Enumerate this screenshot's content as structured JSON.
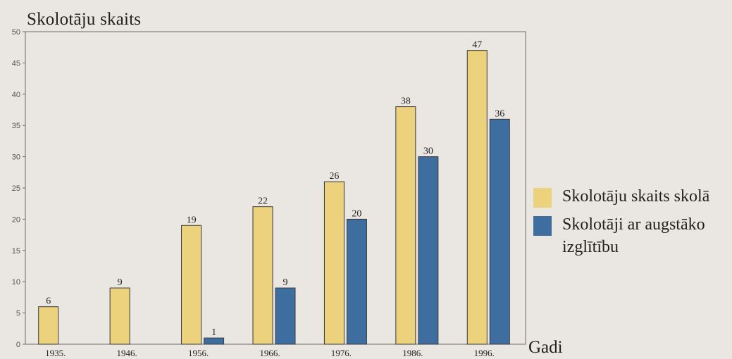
{
  "chart_data": {
    "type": "bar",
    "ylabel": "Skolotāju skaits",
    "xlabel": "Gadi",
    "categories": [
      "1935.",
      "1946.",
      "1956.",
      "1966.",
      "1976.",
      "1986.",
      "1996."
    ],
    "ylim": [
      0,
      50
    ],
    "yticks": [
      0,
      5,
      10,
      15,
      20,
      25,
      30,
      35,
      40,
      45,
      50
    ],
    "grid": false,
    "legend_position": "right",
    "series": [
      {
        "name": "Skolotāju skaits skolā",
        "color": "#ecd27c",
        "values": [
          6,
          9,
          19,
          22,
          26,
          38,
          47
        ],
        "data_labels": [
          "6",
          "9",
          "19",
          "22",
          "26",
          "38",
          "47"
        ]
      },
      {
        "name": "Skolotāji ar augstāko izglītību",
        "color": "#3e6d9f",
        "values": [
          null,
          null,
          1,
          9,
          20,
          30,
          36
        ],
        "data_labels": [
          "",
          "",
          "1",
          "9",
          "20",
          "30",
          "36"
        ]
      }
    ]
  }
}
